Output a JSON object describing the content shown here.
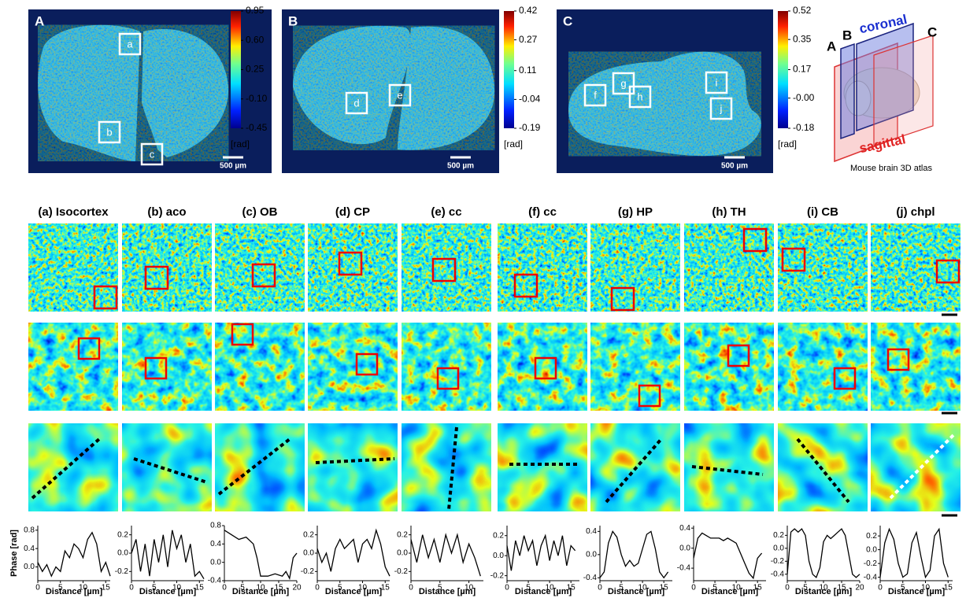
{
  "panels": [
    {
      "label": "A",
      "boxes": [
        "a",
        "b",
        "c"
      ],
      "colorbar": {
        "lim": [
          -0.45,
          0.95
        ],
        "ticks": [
          0.95,
          {
            "value": 0.6,
            "label": "0.60"
          },
          0.25,
          {
            "value": -0.1,
            "label": "-0.10"
          },
          -0.45
        ],
        "unit": "[rad]"
      },
      "scalebar": "500 µm"
    },
    {
      "label": "B",
      "boxes": [
        "d",
        "e"
      ],
      "colorbar": {
        "lim": [
          -0.19,
          0.42
        ],
        "ticks": [
          0.42,
          0.27,
          0.11,
          -0.04,
          -0.19
        ],
        "unit": "[rad]"
      },
      "scalebar": "500 µm"
    },
    {
      "label": "C",
      "boxes": [
        "f",
        "g",
        "h",
        "i",
        "j"
      ],
      "colorbar": {
        "lim": [
          -0.18,
          0.52
        ],
        "ticks": [
          0.52,
          0.35,
          0.17,
          {
            "value": 0,
            "label": "-0.00"
          },
          -0.18
        ],
        "unit": "[rad]"
      },
      "scalebar": "500 µm"
    }
  ],
  "atlas": {
    "labels": [
      "A",
      "B",
      "C"
    ],
    "coronal": "coronal",
    "sagittal": "sagittal",
    "caption": "Mouse brain 3D atlas"
  },
  "chart_data": [
    {
      "type": "line",
      "title": "(a) Isocortex",
      "ylabel": "Phase [rad]",
      "xlabel": "Distance [µm]",
      "x": [
        0,
        1,
        2,
        3,
        4,
        5,
        6,
        7,
        8,
        9,
        10,
        11,
        12,
        13,
        14,
        15,
        16
      ],
      "values": [
        0.1,
        -0.1,
        0.05,
        -0.2,
        0,
        -0.1,
        0.35,
        0.2,
        0.5,
        0.4,
        0.2,
        0.6,
        0.75,
        0.5,
        -0.1,
        0.1,
        -0.2
      ],
      "color": "#000000",
      "xlim": [
        0,
        16
      ],
      "ylim": [
        -0.3,
        0.9
      ],
      "xticks": [
        0,
        5,
        10,
        15
      ],
      "yticks": [
        0.8,
        0.4,
        {
          "value": 0,
          "label": "0.0"
        }
      ]
    },
    {
      "type": "line",
      "title": "(b) aco",
      "xlabel": "Distance [µm]",
      "x": [
        0,
        1,
        2,
        3,
        4,
        5,
        6,
        7,
        8,
        9,
        10,
        11,
        12,
        13,
        14,
        15,
        16
      ],
      "values": [
        0,
        0.15,
        -0.2,
        0.1,
        -0.25,
        0.15,
        -0.1,
        0.2,
        -0.15,
        0.25,
        0.05,
        0.2,
        -0.1,
        0.1,
        -0.25,
        -0.2,
        -0.28
      ],
      "color": "#000000",
      "xlim": [
        0,
        16
      ],
      "ylim": [
        -0.3,
        0.3
      ],
      "xticks": [
        0,
        5,
        10,
        15
      ],
      "yticks": [
        0.2,
        {
          "value": 0,
          "label": "0.0"
        },
        -0.2
      ]
    },
    {
      "type": "line",
      "title": "(c) OB",
      "xlabel": "Distance [µm]",
      "x": [
        0,
        2,
        4,
        6,
        8,
        9,
        10,
        12,
        14,
        16,
        17,
        18,
        19,
        20
      ],
      "values": [
        0.7,
        0.6,
        0.5,
        0.55,
        0.4,
        0.1,
        -0.3,
        -0.3,
        -0.25,
        -0.3,
        -0.2,
        -0.35,
        0.1,
        0.2
      ],
      "color": "#000000",
      "xlim": [
        0,
        20
      ],
      "ylim": [
        -0.4,
        0.8
      ],
      "xticks": [
        0,
        5,
        10,
        15,
        20
      ],
      "yticks": [
        0.8,
        0.4,
        {
          "value": 0,
          "label": "0.0"
        },
        -0.4
      ]
    },
    {
      "type": "line",
      "title": "(d) CP",
      "xlabel": "Distance [µm]",
      "x": [
        0,
        1,
        2,
        3,
        4,
        5,
        6,
        7,
        8,
        9,
        10,
        11,
        12,
        13,
        14,
        15,
        16
      ],
      "values": [
        0.05,
        -0.1,
        0,
        -0.2,
        0.05,
        0.15,
        0.05,
        0.1,
        0.15,
        -0.1,
        0.1,
        0.15,
        0.05,
        0.25,
        0.1,
        -0.15,
        -0.25
      ],
      "color": "#000000",
      "xlim": [
        0,
        16
      ],
      "ylim": [
        -0.3,
        0.3
      ],
      "xticks": [
        0,
        5,
        10,
        15
      ],
      "yticks": [
        0.2,
        {
          "value": 0,
          "label": "0.0"
        },
        -0.2
      ]
    },
    {
      "type": "line",
      "title": "(e) cc",
      "xlabel": "Distance [µm]",
      "x": [
        0,
        1,
        2,
        3,
        4,
        5,
        6,
        7,
        8,
        9,
        10,
        11,
        12
      ],
      "values": [
        0.15,
        -0.1,
        0.2,
        -0.05,
        0.15,
        -0.1,
        0.2,
        0,
        0.2,
        -0.1,
        0.1,
        -0.05,
        -0.25
      ],
      "color": "#000000",
      "xlim": [
        0,
        12.5
      ],
      "ylim": [
        -0.3,
        0.3
      ],
      "xticks": [
        0,
        5,
        10
      ],
      "yticks": [
        0.2,
        {
          "value": 0,
          "label": "0.0"
        },
        -0.2
      ]
    },
    {
      "type": "line",
      "title": "(f) cc",
      "xlabel": "Distance [µm]",
      "x": [
        0,
        1,
        2,
        3,
        4,
        5,
        6,
        7,
        8,
        9,
        10,
        11,
        12,
        13,
        14,
        15,
        16
      ],
      "values": [
        0.1,
        -0.15,
        0.15,
        0,
        0.2,
        0.05,
        0.15,
        -0.1,
        0.1,
        0.2,
        -0.05,
        0.15,
        0,
        0.2,
        -0.1,
        0.1,
        0.05
      ],
      "color": "#000000",
      "xlim": [
        0,
        17
      ],
      "ylim": [
        -0.25,
        0.3
      ],
      "xticks": [
        0,
        5,
        10,
        15
      ],
      "yticks": [
        0.2,
        {
          "value": 0,
          "label": "0.0"
        },
        -0.2
      ]
    },
    {
      "type": "line",
      "title": "(g) HP",
      "xlabel": "Distance [µm]",
      "x": [
        0,
        1,
        2,
        3,
        4,
        5,
        6,
        7,
        8,
        9,
        10,
        11,
        12,
        13,
        14,
        15,
        16
      ],
      "values": [
        -0.4,
        -0.3,
        0.2,
        0.4,
        0.3,
        0,
        -0.2,
        -0.1,
        -0.2,
        -0.15,
        0.1,
        0.35,
        0.4,
        0.1,
        -0.3,
        -0.4,
        -0.3
      ],
      "color": "#000000",
      "xlim": [
        0,
        17
      ],
      "ylim": [
        -0.45,
        0.5
      ],
      "xticks": [
        0,
        5,
        10,
        15
      ],
      "yticks": [
        0.4,
        {
          "value": 0,
          "label": "0.0"
        },
        -0.4
      ]
    },
    {
      "type": "line",
      "title": "(h) TH",
      "xlabel": "Distance [µm]",
      "x": [
        0,
        1,
        2,
        3,
        4,
        5,
        6,
        7,
        8,
        9,
        10,
        11,
        12,
        13,
        14,
        15,
        16
      ],
      "values": [
        -0.2,
        0.2,
        0.3,
        0.25,
        0.2,
        0.2,
        0.2,
        0.15,
        0.2,
        0.15,
        0.1,
        -0.1,
        -0.3,
        -0.5,
        -0.6,
        -0.2,
        -0.1
      ],
      "color": "#000000",
      "xlim": [
        0,
        17
      ],
      "ylim": [
        -0.65,
        0.45
      ],
      "xticks": [
        0,
        5,
        10,
        15
      ],
      "yticks": [
        0.4,
        {
          "value": 0,
          "label": "0.0"
        },
        -0.4
      ]
    },
    {
      "type": "line",
      "title": "(i) CB",
      "xlabel": "Distance [µm]",
      "x": [
        0,
        1,
        2,
        3,
        4,
        5,
        6,
        7,
        8,
        9,
        10,
        11,
        12,
        13,
        14,
        15,
        16,
        17,
        18,
        19,
        20
      ],
      "values": [
        -0.4,
        0.25,
        0.3,
        0.25,
        0.3,
        0.2,
        -0.2,
        -0.4,
        -0.45,
        -0.3,
        0.1,
        0.2,
        0.15,
        0.2,
        0.25,
        0.3,
        0.2,
        -0.1,
        -0.4,
        -0.45,
        -0.4
      ],
      "color": "#000000",
      "xlim": [
        0,
        20
      ],
      "ylim": [
        -0.5,
        0.35
      ],
      "xticks": [
        0,
        5,
        10,
        15,
        20
      ],
      "yticks": [
        0.2,
        {
          "value": 0,
          "label": "0.0"
        },
        -0.2,
        -0.4
      ]
    },
    {
      "type": "line",
      "title": "(j) chpl",
      "xlabel": "Distance [µm]",
      "x": [
        0,
        1,
        2,
        3,
        4,
        5,
        6,
        7,
        8,
        9,
        10,
        11,
        12,
        13,
        14,
        15
      ],
      "values": [
        -0.4,
        0.1,
        0.3,
        0.15,
        -0.2,
        -0.4,
        -0.35,
        0.1,
        0.25,
        -0.1,
        -0.4,
        -0.3,
        0.2,
        0.3,
        -0.2,
        -0.4
      ],
      "color": "#000000",
      "xlim": [
        0,
        16
      ],
      "ylim": [
        -0.45,
        0.35
      ],
      "xticks": [
        0,
        5,
        10,
        15
      ],
      "yticks": [
        0.2,
        {
          "value": 0,
          "label": "0.0"
        },
        -0.2,
        -0.4
      ]
    }
  ]
}
